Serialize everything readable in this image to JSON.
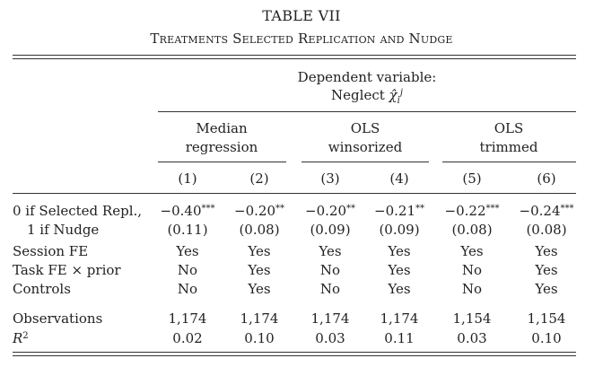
{
  "table": {
    "title": "TABLE VII",
    "subtitle": "Treatments Selected Replication and Nudge",
    "dep_var_label": "Dependent variable:",
    "dep_var_name": "Neglect",
    "dep_var_symbol": "χ̂",
    "dep_var_sup": "j",
    "dep_var_sub": "i",
    "groups": [
      {
        "line1": "Median",
        "line2": "regression"
      },
      {
        "line1": "OLS",
        "line2": "winsorized"
      },
      {
        "line1": "OLS",
        "line2": "trimmed"
      }
    ],
    "columns": [
      "(1)",
      "(2)",
      "(3)",
      "(4)",
      "(5)",
      "(6)"
    ],
    "rows": [
      {
        "label": "0 if Selected Repl.,",
        "cells": [
          {
            "v": "−0.40",
            "s": "***"
          },
          {
            "v": "−0.20",
            "s": "**"
          },
          {
            "v": "−0.20",
            "s": "**"
          },
          {
            "v": "−0.21",
            "s": "**"
          },
          {
            "v": "−0.22",
            "s": "***"
          },
          {
            "v": "−0.24",
            "s": "***"
          }
        ]
      },
      {
        "label": "1 if Nudge",
        "cells": [
          {
            "v": "(0.11)",
            "s": ""
          },
          {
            "v": "(0.08)",
            "s": ""
          },
          {
            "v": "(0.09)",
            "s": ""
          },
          {
            "v": "(0.09)",
            "s": ""
          },
          {
            "v": "(0.08)",
            "s": ""
          },
          {
            "v": "(0.08)",
            "s": ""
          }
        ]
      },
      {
        "label": "Session FE",
        "cells": [
          {
            "v": "Yes",
            "s": ""
          },
          {
            "v": "Yes",
            "s": ""
          },
          {
            "v": "Yes",
            "s": ""
          },
          {
            "v": "Yes",
            "s": ""
          },
          {
            "v": "Yes",
            "s": ""
          },
          {
            "v": "Yes",
            "s": ""
          }
        ]
      },
      {
        "label": "Task FE × prior",
        "cells": [
          {
            "v": "No",
            "s": ""
          },
          {
            "v": "Yes",
            "s": ""
          },
          {
            "v": "No",
            "s": ""
          },
          {
            "v": "Yes",
            "s": ""
          },
          {
            "v": "No",
            "s": ""
          },
          {
            "v": "Yes",
            "s": ""
          }
        ]
      },
      {
        "label": "Controls",
        "cells": [
          {
            "v": "No",
            "s": ""
          },
          {
            "v": "Yes",
            "s": ""
          },
          {
            "v": "No",
            "s": ""
          },
          {
            "v": "Yes",
            "s": ""
          },
          {
            "v": "No",
            "s": ""
          },
          {
            "v": "Yes",
            "s": ""
          }
        ]
      },
      {
        "label": "Observations",
        "cells": [
          {
            "v": "1,174",
            "s": ""
          },
          {
            "v": "1,174",
            "s": ""
          },
          {
            "v": "1,174",
            "s": ""
          },
          {
            "v": "1,174",
            "s": ""
          },
          {
            "v": "1,154",
            "s": ""
          },
          {
            "v": "1,154",
            "s": ""
          }
        ]
      },
      {
        "label": "R",
        "label_sup": "2",
        "cells": [
          {
            "v": "0.02",
            "s": ""
          },
          {
            "v": "0.10",
            "s": ""
          },
          {
            "v": "0.03",
            "s": ""
          },
          {
            "v": "0.11",
            "s": ""
          },
          {
            "v": "0.03",
            "s": ""
          },
          {
            "v": "0.10",
            "s": ""
          }
        ]
      }
    ]
  }
}
